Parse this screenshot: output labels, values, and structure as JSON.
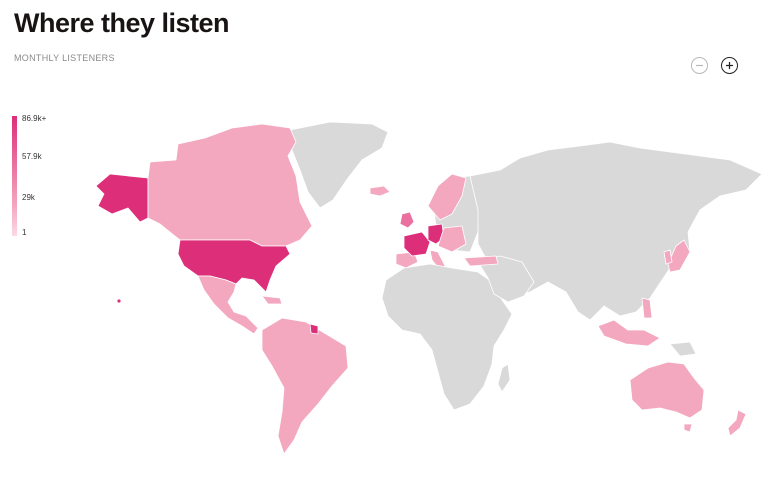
{
  "header": {
    "title": "Where they listen",
    "subtitle": "MONTHLY LISTENERS"
  },
  "zoom": {
    "out_icon": "minus-circle-icon",
    "in_icon": "plus-circle-icon"
  },
  "legend": {
    "labels": [
      "86.9k+",
      "57.9k",
      "29k",
      "1"
    ],
    "colors": [
      "#dd2e7a",
      "#e9709f",
      "#f4a8c0",
      "#fcd9e4"
    ]
  },
  "map": {
    "no_data_color": "#d9d9d9",
    "highlighted_regions": [
      "United States",
      "Alaska",
      "France",
      "Germany",
      "French Guiana"
    ]
  }
}
